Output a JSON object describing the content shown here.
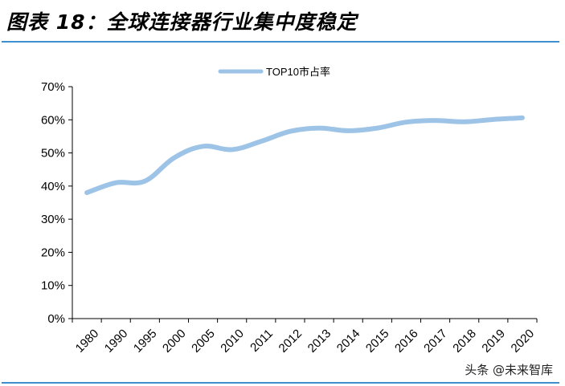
{
  "figure": {
    "title": "图表 18：全球连接器行业集中度稳定",
    "watermark": "头条 @未来智库"
  },
  "colors": {
    "line": "#9dc3e6",
    "rule": "#3f8fcf",
    "axis": "#000000"
  },
  "chart_data": {
    "type": "line",
    "title": "",
    "xlabel": "",
    "ylabel": "",
    "categories": [
      "1980",
      "1990",
      "1995",
      "2000",
      "2005",
      "2010",
      "2011",
      "2012",
      "2013",
      "2014",
      "2015",
      "2016",
      "2017",
      "2018",
      "2019",
      "2020"
    ],
    "series": [
      {
        "name": "TOP10市占率",
        "values": [
          0.38,
          0.41,
          0.415,
          0.485,
          0.52,
          0.51,
          0.535,
          0.565,
          0.575,
          0.567,
          0.575,
          0.593,
          0.598,
          0.594,
          0.601,
          0.606
        ]
      }
    ],
    "ylim": [
      0,
      0.7
    ],
    "yticks": [
      0,
      0.1,
      0.2,
      0.3,
      0.4,
      0.5,
      0.6,
      0.7
    ],
    "ytick_labels": [
      "0%",
      "10%",
      "20%",
      "30%",
      "40%",
      "50%",
      "60%",
      "70%"
    ],
    "grid": false,
    "legend_position": "top-center"
  }
}
